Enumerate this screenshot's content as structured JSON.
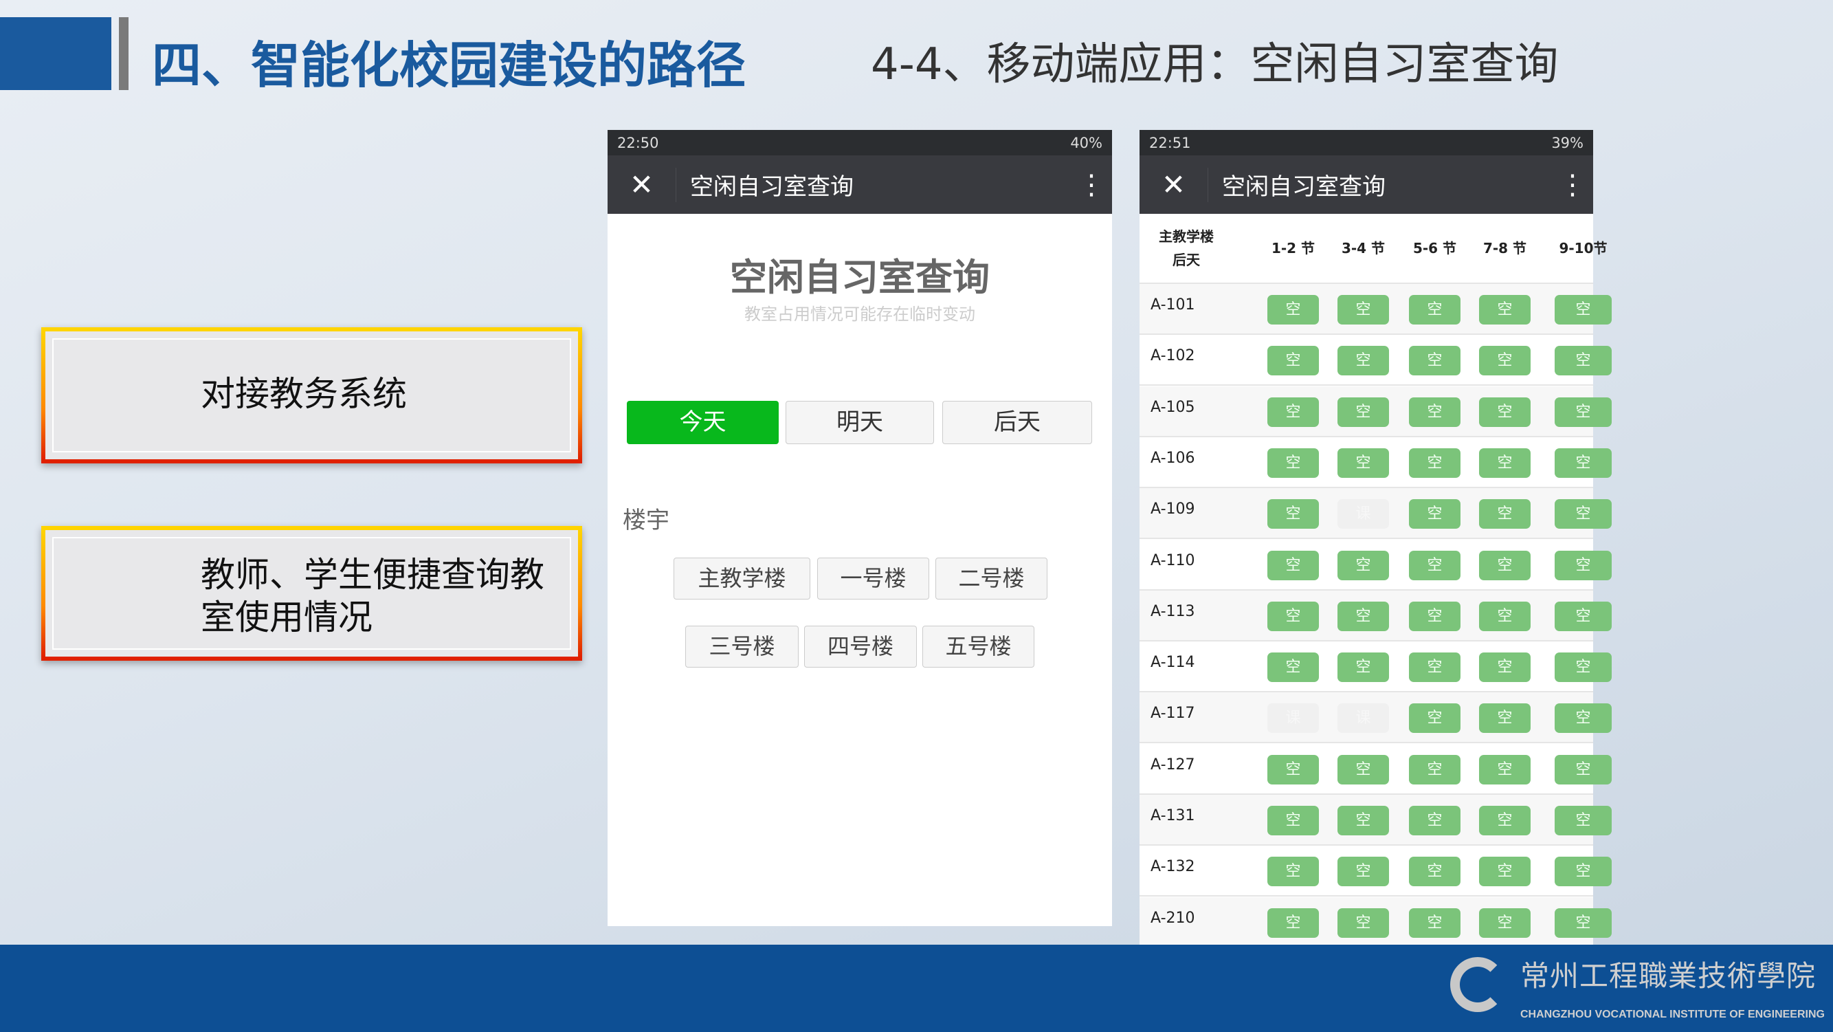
{
  "slide": {
    "title": "四、智能化校园建设的路径",
    "subtitle": "4-4、移动端应用：空闲自习室查询",
    "points": [
      "对接教务系统",
      "教师、学生便捷查询教室使用情况"
    ],
    "logo": {
      "cn": "常州工程職業技術學院",
      "en": "CHANGZHOU VOCATIONAL INSTITUTE OF ENGINEERING"
    }
  },
  "colors": {
    "title": "#1a5a9e",
    "footer": "#0d4f94",
    "free": "#7bc47a",
    "selected": "#08b81c"
  },
  "phone1": {
    "time": "22:50",
    "battery": "40%",
    "appbar_title": "空闲自习室查询",
    "close_icon": "close-icon",
    "more_icon": "more-vertical-icon",
    "heading": "空闲自习室查询",
    "note": "教室占用情况可能存在临时变动",
    "days": [
      "今天",
      "明天",
      "后天"
    ],
    "selected_day": "今天",
    "building_label": "楼宇",
    "buildings": [
      "主教学楼",
      "一号楼",
      "二号楼",
      "三号楼",
      "四号楼",
      "五号楼"
    ]
  },
  "phone2": {
    "time": "22:51",
    "battery": "39%",
    "appbar_title": "空闲自习室查询",
    "header": {
      "building": "主教学楼",
      "day": "后天",
      "periods": [
        "1-2 节",
        "3-4 节",
        "5-6 节",
        "7-8 节",
        "9-10节"
      ]
    },
    "free_label": "空",
    "occupied_label": "课",
    "rows": [
      {
        "room": "A-101",
        "free": [
          true,
          true,
          true,
          true,
          true
        ]
      },
      {
        "room": "A-102",
        "free": [
          true,
          true,
          true,
          true,
          true
        ]
      },
      {
        "room": "A-105",
        "free": [
          true,
          true,
          true,
          true,
          true
        ]
      },
      {
        "room": "A-106",
        "free": [
          true,
          true,
          true,
          true,
          true
        ]
      },
      {
        "room": "A-109",
        "free": [
          true,
          false,
          true,
          true,
          true
        ]
      },
      {
        "room": "A-110",
        "free": [
          true,
          true,
          true,
          true,
          true
        ]
      },
      {
        "room": "A-113",
        "free": [
          true,
          true,
          true,
          true,
          true
        ]
      },
      {
        "room": "A-114",
        "free": [
          true,
          true,
          true,
          true,
          true
        ]
      },
      {
        "room": "A-117",
        "free": [
          false,
          false,
          true,
          true,
          true
        ]
      },
      {
        "room": "A-127",
        "free": [
          true,
          true,
          true,
          true,
          true
        ]
      },
      {
        "room": "A-131",
        "free": [
          true,
          true,
          true,
          true,
          true
        ]
      },
      {
        "room": "A-132",
        "free": [
          true,
          true,
          true,
          true,
          true
        ]
      },
      {
        "room": "A-210",
        "free": [
          true,
          true,
          true,
          true,
          true
        ]
      }
    ]
  }
}
